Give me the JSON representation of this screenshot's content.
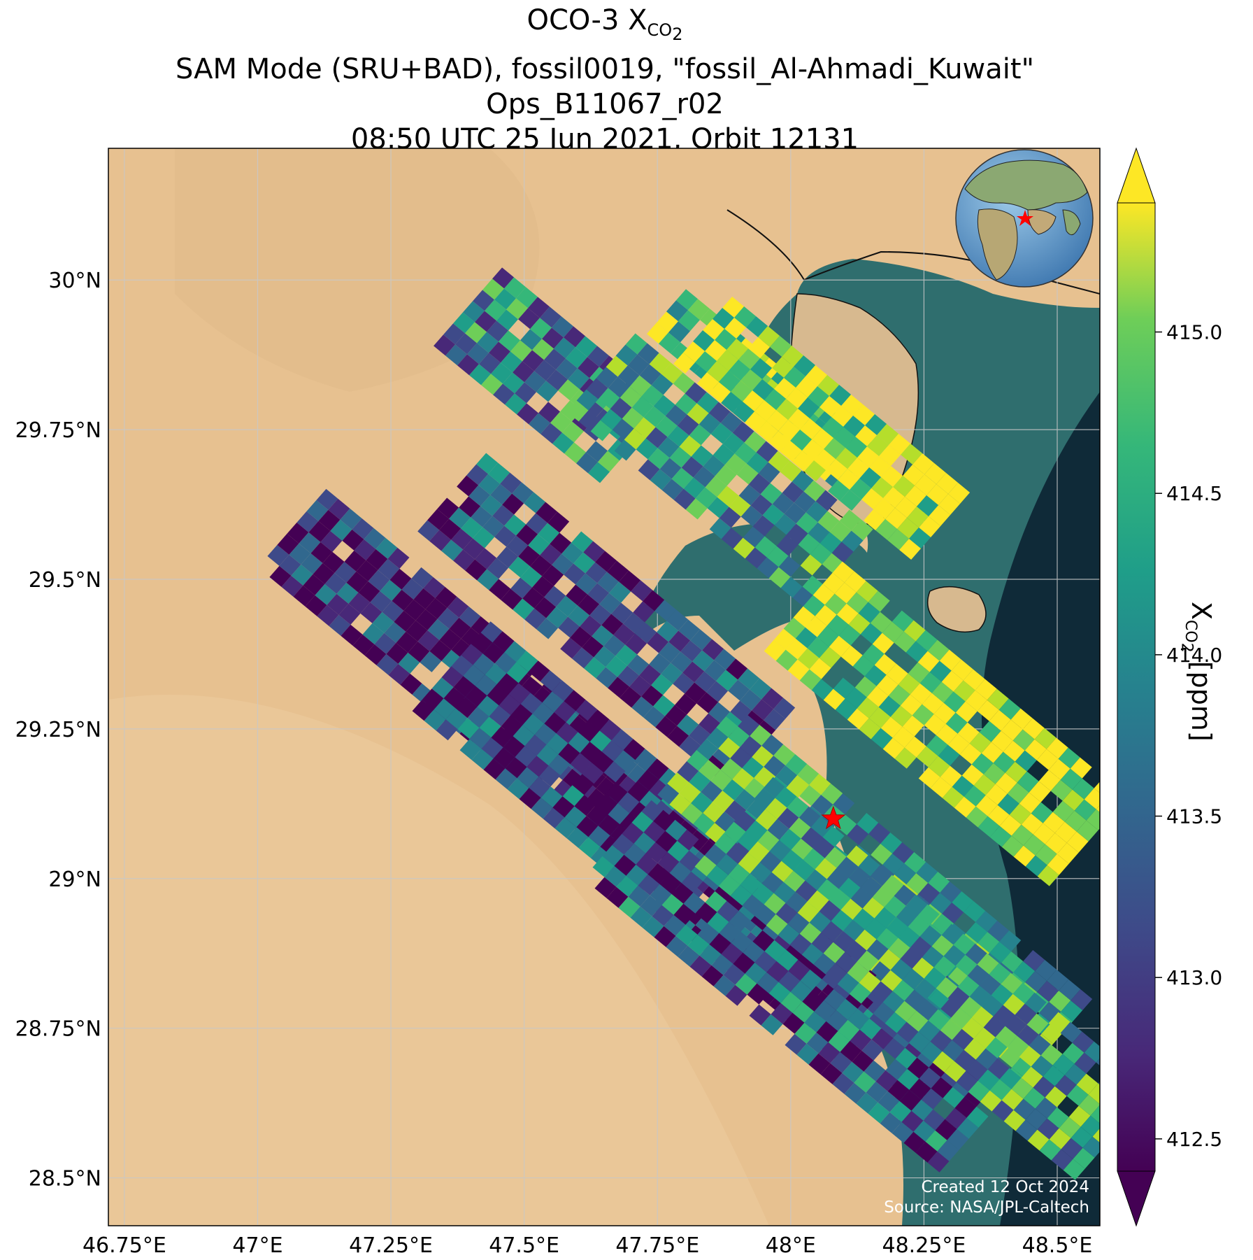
{
  "title": {
    "line1_prefix": "OCO-3 X",
    "line1_sub": "CO",
    "line1_subsub": "2",
    "line2": "SAM Mode (SRU+BAD), fossil0019, \"fossil_Al-Ahmadi_Kuwait\"",
    "line3": "Ops_B11067_r02",
    "line4": "08:50 UTC 25 Jun 2021, Orbit 12131"
  },
  "axes": {
    "x_ticks": [
      "46.75°E",
      "47°E",
      "47.25°E",
      "47.5°E",
      "47.75°E",
      "48°E",
      "48.25°E",
      "48.5°E"
    ],
    "x_values": [
      46.75,
      47.0,
      47.25,
      47.5,
      47.75,
      48.0,
      48.25,
      48.5
    ],
    "y_ticks": [
      "30°N",
      "29.75°N",
      "29.5°N",
      "29.25°N",
      "29°N",
      "28.75°N",
      "28.5°N"
    ],
    "y_values": [
      30.0,
      29.75,
      29.5,
      29.25,
      29.0,
      28.75,
      28.5
    ],
    "lon_range": [
      46.72,
      48.58
    ],
    "lat_range": [
      28.42,
      30.22
    ]
  },
  "colorbar": {
    "label_prefix": "X",
    "label_sub": "CO",
    "label_subsub": "2",
    "label_suffix": " [ppm]",
    "ticks": [
      "415.0",
      "414.5",
      "414.0",
      "413.5",
      "413.0",
      "412.5"
    ],
    "tick_values": [
      415.0,
      414.5,
      414.0,
      413.5,
      413.0,
      412.5
    ],
    "vmin": 412.4,
    "vmax": 415.4,
    "extend": "both",
    "colormap": "viridis"
  },
  "target": {
    "name": "fossil_Al-Ahmadi_Kuwait",
    "lon": 48.08,
    "lat": 29.1,
    "marker": "red-star",
    "color": "#ff0000"
  },
  "credit": {
    "line1": "Created 12 Oct 2024",
    "line2": "Source: NASA/JPL-Caltech"
  },
  "colors": {
    "desert": "#e7c190",
    "sea": "#2f6e6e",
    "deep_sea": "#0f2a38",
    "gridline": "#c8c8c8"
  }
}
